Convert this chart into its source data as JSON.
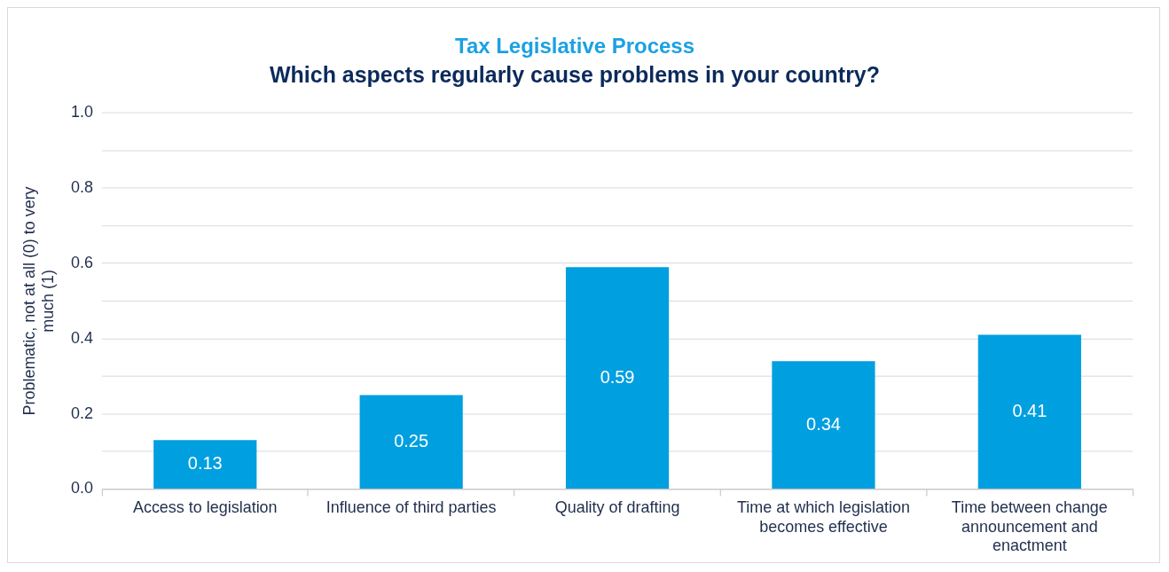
{
  "chart_data": {
    "type": "bar",
    "title": "Tax Legislative Process",
    "subtitle": "Which aspects regularly cause problems in your country?",
    "ylabel": "Problematic, not at all (0) to very much (1)",
    "categories": [
      "Access to legislation",
      "Influence of third parties",
      "Quality of drafting",
      "Time at which legislation becomes effective",
      "Time between change announcement and enactment"
    ],
    "values": [
      0.13,
      0.25,
      0.59,
      0.34,
      0.41
    ],
    "color": "#009fe0",
    "ylim": [
      0,
      1
    ],
    "yticks": [
      {
        "value": 0,
        "label": "0.0"
      },
      {
        "value": 0.1,
        "label": null
      },
      {
        "value": 0.2,
        "label": "0.2"
      },
      {
        "value": 0.3,
        "label": null
      },
      {
        "value": 0.4,
        "label": "0.4"
      },
      {
        "value": 0.5,
        "label": null
      },
      {
        "value": 0.6,
        "label": "0.6"
      },
      {
        "value": 0.7,
        "label": null
      },
      {
        "value": 0.8,
        "label": "0.8"
      },
      {
        "value": 0.9,
        "label": null
      },
      {
        "value": 1,
        "label": "1.0"
      }
    ],
    "grid": "y",
    "data_labels": true
  }
}
